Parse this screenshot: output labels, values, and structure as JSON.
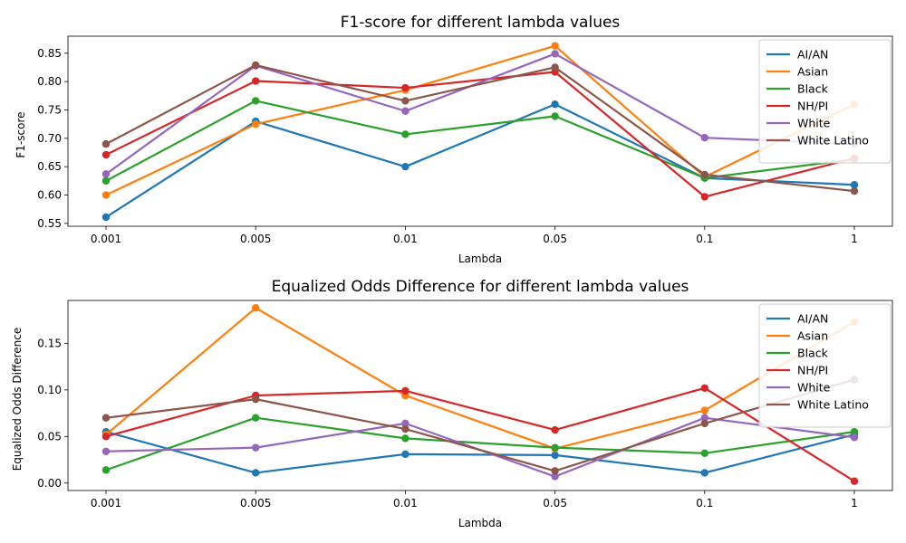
{
  "chart_data": [
    {
      "type": "line",
      "title": "F1-score for different lambda values",
      "xlabel": "Lambda",
      "ylabel": "F1-score",
      "categories": [
        "0.001",
        "0.005",
        "0.01",
        "0.05",
        "0.1",
        "1"
      ],
      "ylim": [
        0.545,
        0.88
      ],
      "yticks": [
        0.55,
        0.6,
        0.65,
        0.7,
        0.75,
        0.8,
        0.85
      ],
      "ytick_labels": [
        "0.55",
        "0.60",
        "0.65",
        "0.70",
        "0.75",
        "0.80",
        "0.85"
      ],
      "grid": false,
      "legend_position": "top-right",
      "series": [
        {
          "name": "AI/AN",
          "color": "#1f77b4",
          "values": [
            0.561,
            0.73,
            0.65,
            0.76,
            0.63,
            0.618
          ]
        },
        {
          "name": "Asian",
          "color": "#ff7f0e",
          "values": [
            0.6,
            0.725,
            0.785,
            0.863,
            0.632,
            0.76
          ]
        },
        {
          "name": "Black",
          "color": "#2ca02c",
          "values": [
            0.625,
            0.766,
            0.707,
            0.739,
            0.63,
            0.663
          ]
        },
        {
          "name": "NH/PI",
          "color": "#d62728",
          "values": [
            0.671,
            0.801,
            0.789,
            0.817,
            0.597,
            0.665
          ]
        },
        {
          "name": "White",
          "color": "#9467bd",
          "values": [
            0.637,
            0.828,
            0.748,
            0.849,
            0.701,
            0.69
          ]
        },
        {
          "name": "White Latino",
          "color": "#8c564b",
          "values": [
            0.69,
            0.829,
            0.766,
            0.825,
            0.636,
            0.607
          ]
        }
      ]
    },
    {
      "type": "line",
      "title": "Equalized Odds Difference for different lambda values",
      "xlabel": "Lambda",
      "ylabel": "Equalized Odds Difference",
      "categories": [
        "0.001",
        "0.005",
        "0.01",
        "0.05",
        "0.1",
        "1"
      ],
      "ylim": [
        -0.008,
        0.196
      ],
      "yticks": [
        0.0,
        0.05,
        0.1,
        0.15
      ],
      "ytick_labels": [
        "0.00",
        "0.05",
        "0.10",
        "0.15"
      ],
      "grid": false,
      "legend_position": "top-right",
      "series": [
        {
          "name": "AI/AN",
          "color": "#1f77b4",
          "values": [
            0.055,
            0.011,
            0.031,
            0.03,
            0.011,
            0.052
          ]
        },
        {
          "name": "Asian",
          "color": "#ff7f0e",
          "values": [
            0.052,
            0.188,
            0.094,
            0.037,
            0.078,
            0.173
          ]
        },
        {
          "name": "Black",
          "color": "#2ca02c",
          "values": [
            0.014,
            0.07,
            0.048,
            0.038,
            0.032,
            0.055
          ]
        },
        {
          "name": "NH/PI",
          "color": "#d62728",
          "values": [
            0.05,
            0.094,
            0.099,
            0.057,
            0.102,
            0.002
          ]
        },
        {
          "name": "White",
          "color": "#9467bd",
          "values": [
            0.034,
            0.038,
            0.064,
            0.007,
            0.07,
            0.049
          ]
        },
        {
          "name": "White Latino",
          "color": "#8c564b",
          "values": [
            0.07,
            0.09,
            0.058,
            0.013,
            0.064,
            0.111
          ]
        }
      ]
    }
  ]
}
